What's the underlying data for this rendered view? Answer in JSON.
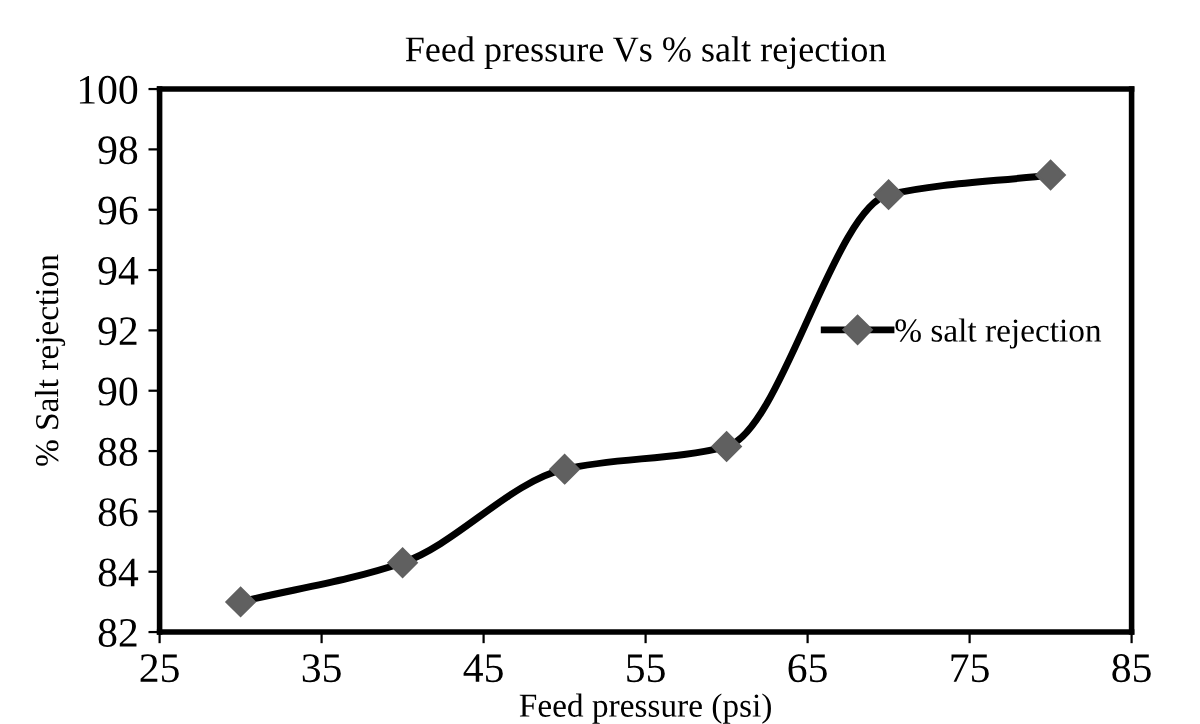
{
  "chart_data": {
    "type": "line",
    "title": "Feed pressure Vs % salt rejection",
    "xlabel": "Feed pressure (psi)",
    "ylabel": "% Salt rejection",
    "x": [
      30,
      40,
      50,
      60,
      70,
      80
    ],
    "series": [
      {
        "name": "% salt rejection",
        "color": "#000000",
        "values": [
          83.0,
          84.3,
          87.4,
          88.15,
          96.5,
          97.15
        ]
      }
    ],
    "xlim": [
      25,
      85
    ],
    "xticks": [
      25,
      35,
      45,
      55,
      65,
      75,
      85
    ],
    "ylim": [
      82,
      100
    ],
    "yticks": [
      82,
      84,
      86,
      88,
      90,
      92,
      94,
      96,
      98,
      100
    ],
    "grid": false,
    "legend": "right",
    "marker": "diamond",
    "line_style": "solid"
  }
}
